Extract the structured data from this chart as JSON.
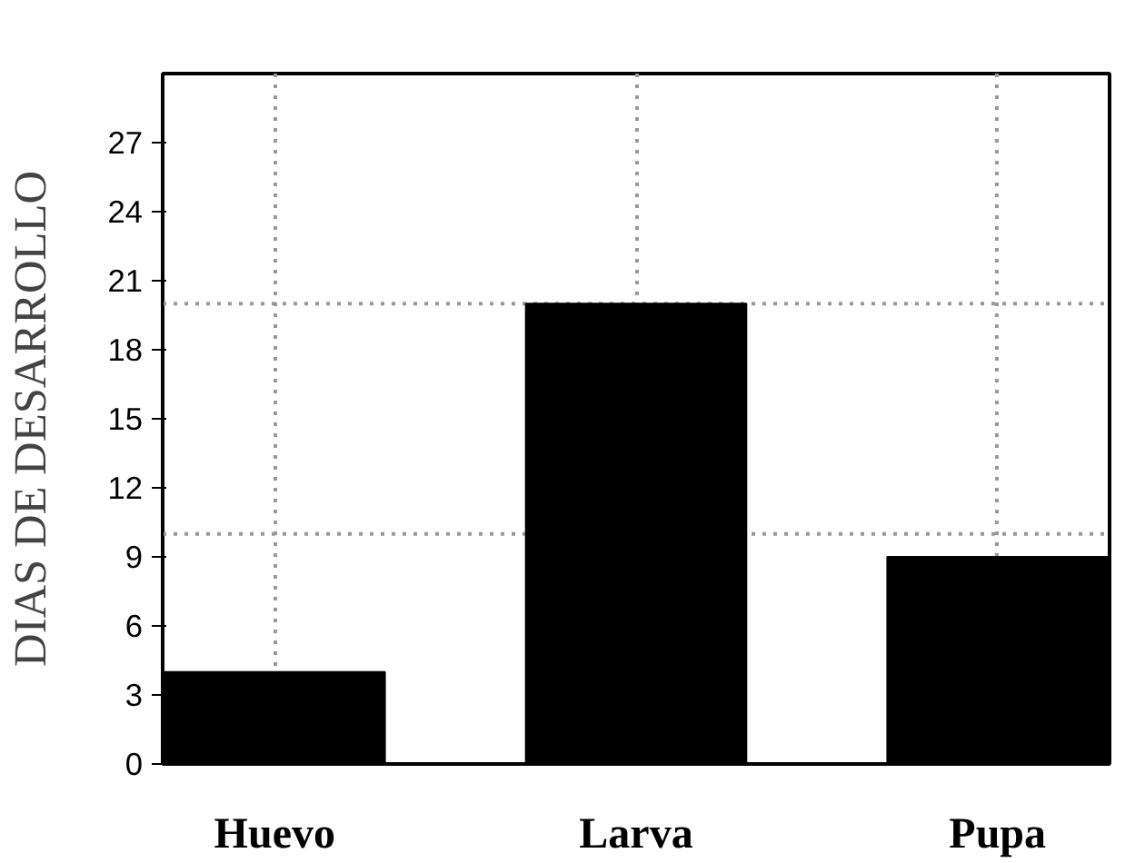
{
  "chart_data": {
    "type": "bar",
    "ylabel": "DIAS DE DESARROLLO",
    "categories": [
      "Huevo",
      "Larva",
      "Pupa"
    ],
    "values": [
      4,
      20,
      9
    ],
    "color": "#000000",
    "ylim": [
      0,
      30
    ],
    "yticks": [
      0,
      3,
      6,
      9,
      12,
      15,
      18,
      21,
      24,
      27
    ],
    "grid": "x",
    "ref_lines": [
      {
        "axis": "y",
        "value": 10,
        "label": null,
        "line_style": "dotted",
        "color": "#999999"
      },
      {
        "axis": "y",
        "value": 20,
        "label": null,
        "line_style": "dotted",
        "color": "#999999"
      }
    ]
  }
}
